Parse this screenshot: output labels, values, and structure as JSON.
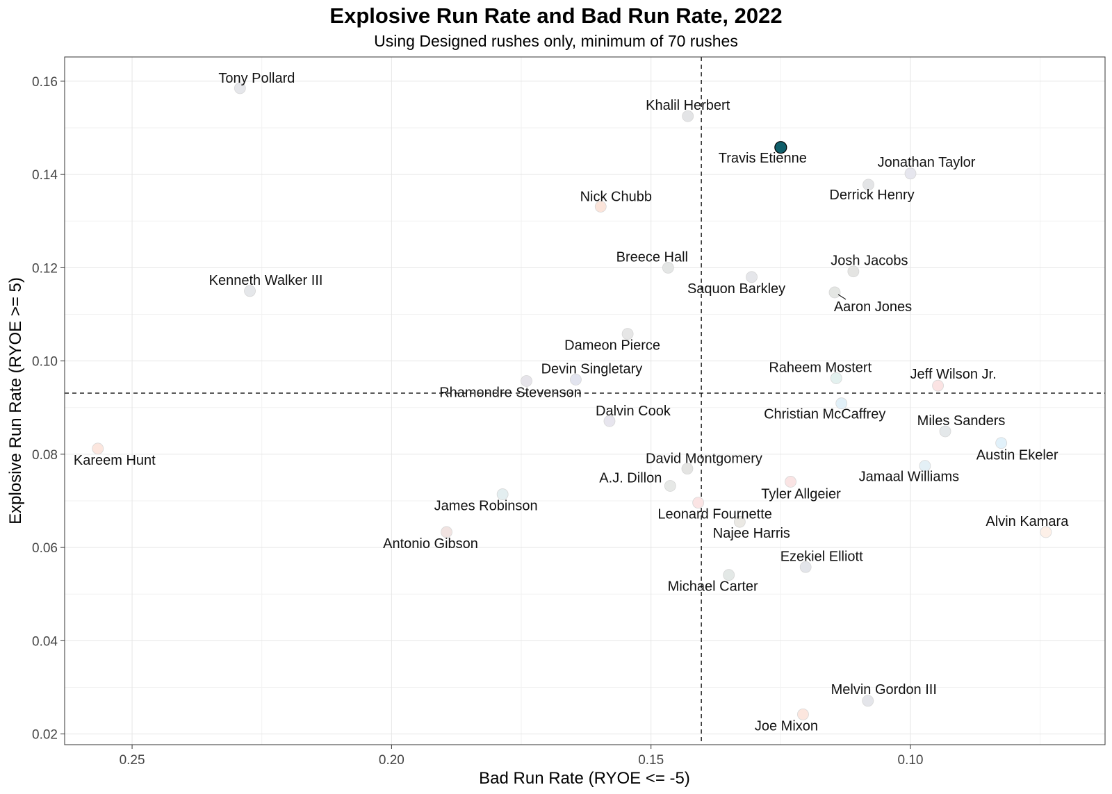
{
  "chart_data": {
    "type": "scatter",
    "title": "Explosive Run Rate and Bad Run Rate, 2022",
    "subtitle": "Using Designed rushes only, minimum of 70 rushes",
    "xlabel": "Bad Run Rate (RYOE <= -5)",
    "ylabel": "Explosive Run Rate (RYOE >= 5)",
    "x_reversed": true,
    "xlim": [
      0.263,
      0.0625
    ],
    "ylim": [
      0.0177,
      0.1652
    ],
    "x_ticks": [
      0.25,
      0.2,
      0.15,
      0.1
    ],
    "x_tick_labels": [
      "0.25",
      "0.20",
      "0.15",
      "0.10"
    ],
    "y_ticks": [
      0.02,
      0.04,
      0.06,
      0.08,
      0.1,
      0.12,
      0.14,
      0.16
    ],
    "y_tick_labels": [
      "0.02",
      "0.04",
      "0.06",
      "0.08",
      "0.10",
      "0.12",
      "0.14",
      "0.16"
    ],
    "grid": true,
    "reference_lines": {
      "x": 0.1403,
      "y": 0.0931
    },
    "highlight_color": "#0f5e6a",
    "points": [
      {
        "name": "Tony Pollard",
        "x": 0.2292,
        "y": 0.1585,
        "color": "#e5e6ea"
      },
      {
        "name": "Khalil Herbert",
        "x": 0.1429,
        "y": 0.1525,
        "color": "#e3e4e6"
      },
      {
        "name": "Travis Etienne",
        "x": 0.125,
        "y": 0.1458,
        "color": "#0f5e6a",
        "highlight": true
      },
      {
        "name": "Jonathan Taylor",
        "x": 0.1,
        "y": 0.1402,
        "color": "#e6e6ee"
      },
      {
        "name": "Derrick Henry",
        "x": 0.1081,
        "y": 0.1378,
        "color": "#e3e4e6"
      },
      {
        "name": "Nick Chubb",
        "x": 0.1597,
        "y": 0.1331,
        "color": "#fbe4da"
      },
      {
        "name": "Breece Hall",
        "x": 0.1467,
        "y": 0.12,
        "color": "#e4e6e5"
      },
      {
        "name": "Saquon Barkley",
        "x": 0.1306,
        "y": 0.118,
        "color": "#e5e6ea"
      },
      {
        "name": "Josh Jacobs",
        "x": 0.111,
        "y": 0.1192,
        "color": "#e4e4e2"
      },
      {
        "name": "Aaron Jones",
        "x": 0.1146,
        "y": 0.1147,
        "color": "#e4e6e3"
      },
      {
        "name": "Kenneth Walker III",
        "x": 0.2273,
        "y": 0.115,
        "color": "#e5e7ea"
      },
      {
        "name": "Dameon Pierce",
        "x": 0.1545,
        "y": 0.1058,
        "color": "#e6e6e6"
      },
      {
        "name": "Devin Singletary",
        "x": 0.1645,
        "y": 0.096,
        "color": "#e2e4ef"
      },
      {
        "name": "Rhamondre Stevenson",
        "x": 0.174,
        "y": 0.0957,
        "color": "#e6e4ea"
      },
      {
        "name": "Raheem Mostert",
        "x": 0.1143,
        "y": 0.0963,
        "color": "#e3f1ef"
      },
      {
        "name": "Jeff Wilson Jr.",
        "x": 0.0947,
        "y": 0.0947,
        "color": "#fbe3e3"
      },
      {
        "name": "Christian McCaffrey",
        "x": 0.1133,
        "y": 0.0909,
        "color": "#e1f0f8"
      },
      {
        "name": "Dalvin Cook",
        "x": 0.158,
        "y": 0.0871,
        "color": "#e7e5ee"
      },
      {
        "name": "Miles Sanders",
        "x": 0.0933,
        "y": 0.0849,
        "color": "#e4e8ea"
      },
      {
        "name": "Austin Ekeler",
        "x": 0.0825,
        "y": 0.0824,
        "color": "#e1f1fa"
      },
      {
        "name": "Kareem Hunt",
        "x": 0.2566,
        "y": 0.0812,
        "color": "#fce6de"
      },
      {
        "name": "David Montgomery",
        "x": 0.143,
        "y": 0.0769,
        "color": "#e4e4e2"
      },
      {
        "name": "Jamaal Williams",
        "x": 0.0972,
        "y": 0.0775,
        "color": "#e4f0f6"
      },
      {
        "name": "Tyler Allgeier",
        "x": 0.1231,
        "y": 0.0741,
        "color": "#fae4e4"
      },
      {
        "name": "A.J. Dillon",
        "x": 0.1463,
        "y": 0.0732,
        "color": "#e6e8e6"
      },
      {
        "name": "James Robinson",
        "x": 0.1786,
        "y": 0.0714,
        "color": "#e3eef0"
      },
      {
        "name": "Leonard Fournette",
        "x": 0.1409,
        "y": 0.0696,
        "color": "#fbe4e4"
      },
      {
        "name": "Najee Harris",
        "x": 0.1329,
        "y": 0.0655,
        "color": "#ebe9e4"
      },
      {
        "name": "Antonio Gibson",
        "x": 0.1894,
        "y": 0.0633,
        "color": "#f1e3e1"
      },
      {
        "name": "Alvin Kamara",
        "x": 0.0739,
        "y": 0.0633,
        "color": "#fdf0e8"
      },
      {
        "name": "Ezekiel Elliott",
        "x": 0.1202,
        "y": 0.0558,
        "color": "#e3e5ea"
      },
      {
        "name": "Michael Carter",
        "x": 0.135,
        "y": 0.0541,
        "color": "#e3e8e6"
      },
      {
        "name": "Melvin Gordon III",
        "x": 0.1082,
        "y": 0.0271,
        "color": "#e4e5ea"
      },
      {
        "name": "Joe Mixon",
        "x": 0.1207,
        "y": 0.0242,
        "color": "#fce6de"
      }
    ]
  }
}
